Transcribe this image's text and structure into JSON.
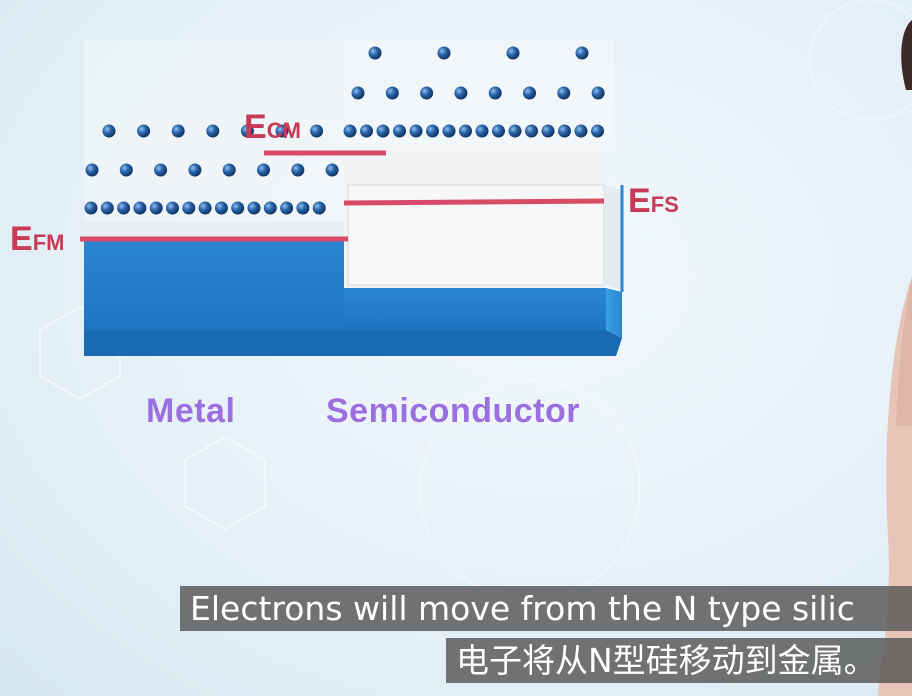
{
  "labels": {
    "metal": "Metal",
    "semiconductor": "Semiconductor",
    "e_cm": {
      "main": "E",
      "sub": "CM"
    },
    "e_fs": {
      "main": "E",
      "sub": "FS"
    },
    "e_fm": {
      "main": "E",
      "sub": "FM"
    }
  },
  "subtitles": {
    "english": "Electrons will move from the N type silic",
    "chinese": "电子将从N型硅移动到金属。"
  },
  "colors": {
    "band_blue": "#2f8fd8",
    "level_line": "#d84b66",
    "label_purple": "#9b6fe0",
    "electron": "#1d4f8a"
  }
}
